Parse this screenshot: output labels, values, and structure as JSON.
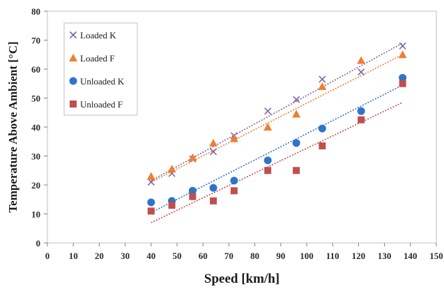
{
  "chart_data": {
    "type": "scatter",
    "xlabel": "Speed [km/h]",
    "ylabel": "Temperature Above Ambient  [°C]",
    "xlim": [
      0,
      150
    ],
    "ylim": [
      0,
      80
    ],
    "x_ticks": [
      0,
      10,
      20,
      30,
      40,
      50,
      60,
      70,
      80,
      90,
      100,
      110,
      120,
      130,
      140,
      150
    ],
    "y_ticks": [
      0,
      10,
      20,
      30,
      40,
      50,
      60,
      70,
      80
    ],
    "grid": false,
    "legend_position": "top-left",
    "series": [
      {
        "name": "Loaded K",
        "marker": "x",
        "color": "#8064a2",
        "x": [
          40,
          48,
          56,
          64,
          72,
          85,
          96,
          106,
          121,
          137
        ],
        "y": [
          21,
          24,
          29,
          31.5,
          37,
          45.5,
          49.5,
          56.5,
          59,
          68
        ],
        "trendline": {
          "from": [
            40,
            21.5
          ],
          "to": [
            137,
            69
          ]
        }
      },
      {
        "name": "Loaded F",
        "marker": "triangle",
        "color": "#f07f2f",
        "x": [
          40,
          48,
          56,
          64,
          72,
          85,
          96,
          106,
          121,
          137
        ],
        "y": [
          23,
          25.5,
          29.5,
          34.5,
          36,
          40,
          44.5,
          54,
          63,
          65
        ],
        "trendline": {
          "from": [
            40,
            21
          ],
          "to": [
            137,
            65
          ]
        }
      },
      {
        "name": "Unloaded K",
        "marker": "circle",
        "color": "#2e75c9",
        "x": [
          40,
          48,
          56,
          64,
          72,
          85,
          96,
          106,
          121,
          137
        ],
        "y": [
          14,
          14.5,
          18,
          19,
          21.5,
          28.5,
          34.5,
          39.5,
          45.5,
          57
        ],
        "trendline": {
          "from": [
            40,
            10.5
          ],
          "to": [
            137,
            54.5
          ]
        }
      },
      {
        "name": "Unloaded F",
        "marker": "square",
        "color": "#c0504d",
        "x": [
          40,
          48,
          56,
          64,
          72,
          85,
          96,
          106,
          121,
          137
        ],
        "y": [
          11,
          13,
          16,
          14.5,
          18,
          25,
          25,
          33.5,
          42.5,
          55
        ],
        "trendline": {
          "from": [
            40,
            7
          ],
          "to": [
            137,
            48.5
          ]
        }
      }
    ]
  }
}
